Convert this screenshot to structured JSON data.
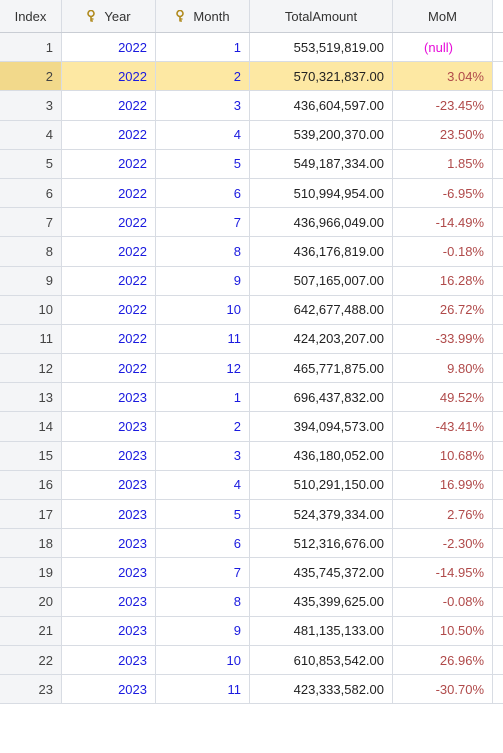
{
  "columns": {
    "index": "Index",
    "year": "Year",
    "month": "Month",
    "total": "TotalAmount",
    "mom": "MoM"
  },
  "selected_row": 2,
  "rows": [
    {
      "index": "1",
      "year": "2022",
      "month": "1",
      "total": "553,519,819.00",
      "mom": "(null)"
    },
    {
      "index": "2",
      "year": "2022",
      "month": "2",
      "total": "570,321,837.00",
      "mom": "3.04%"
    },
    {
      "index": "3",
      "year": "2022",
      "month": "3",
      "total": "436,604,597.00",
      "mom": "-23.45%"
    },
    {
      "index": "4",
      "year": "2022",
      "month": "4",
      "total": "539,200,370.00",
      "mom": "23.50%"
    },
    {
      "index": "5",
      "year": "2022",
      "month": "5",
      "total": "549,187,334.00",
      "mom": "1.85%"
    },
    {
      "index": "6",
      "year": "2022",
      "month": "6",
      "total": "510,994,954.00",
      "mom": "-6.95%"
    },
    {
      "index": "7",
      "year": "2022",
      "month": "7",
      "total": "436,966,049.00",
      "mom": "-14.49%"
    },
    {
      "index": "8",
      "year": "2022",
      "month": "8",
      "total": "436,176,819.00",
      "mom": "-0.18%"
    },
    {
      "index": "9",
      "year": "2022",
      "month": "9",
      "total": "507,165,007.00",
      "mom": "16.28%"
    },
    {
      "index": "10",
      "year": "2022",
      "month": "10",
      "total": "642,677,488.00",
      "mom": "26.72%"
    },
    {
      "index": "11",
      "year": "2022",
      "month": "11",
      "total": "424,203,207.00",
      "mom": "-33.99%"
    },
    {
      "index": "12",
      "year": "2022",
      "month": "12",
      "total": "465,771,875.00",
      "mom": "9.80%"
    },
    {
      "index": "13",
      "year": "2023",
      "month": "1",
      "total": "696,437,832.00",
      "mom": "49.52%"
    },
    {
      "index": "14",
      "year": "2023",
      "month": "2",
      "total": "394,094,573.00",
      "mom": "-43.41%"
    },
    {
      "index": "15",
      "year": "2023",
      "month": "3",
      "total": "436,180,052.00",
      "mom": "10.68%"
    },
    {
      "index": "16",
      "year": "2023",
      "month": "4",
      "total": "510,291,150.00",
      "mom": "16.99%"
    },
    {
      "index": "17",
      "year": "2023",
      "month": "5",
      "total": "524,379,334.00",
      "mom": "2.76%"
    },
    {
      "index": "18",
      "year": "2023",
      "month": "6",
      "total": "512,316,676.00",
      "mom": "-2.30%"
    },
    {
      "index": "19",
      "year": "2023",
      "month": "7",
      "total": "435,745,372.00",
      "mom": "-14.95%"
    },
    {
      "index": "20",
      "year": "2023",
      "month": "8",
      "total": "435,399,625.00",
      "mom": "-0.08%"
    },
    {
      "index": "21",
      "year": "2023",
      "month": "9",
      "total": "481,135,133.00",
      "mom": "10.50%"
    },
    {
      "index": "22",
      "year": "2023",
      "month": "10",
      "total": "610,853,542.00",
      "mom": "26.96%"
    },
    {
      "index": "23",
      "year": "2023",
      "month": "11",
      "total": "423,333,582.00",
      "mom": "-30.70%"
    }
  ],
  "colors": {
    "key_columns": "#1a1adf",
    "mom": "#b04a4a",
    "null": "#e60bd9",
    "selected_row": "#fde8a3"
  },
  "icons": {
    "year_header": "key-icon",
    "month_header": "key-icon"
  }
}
